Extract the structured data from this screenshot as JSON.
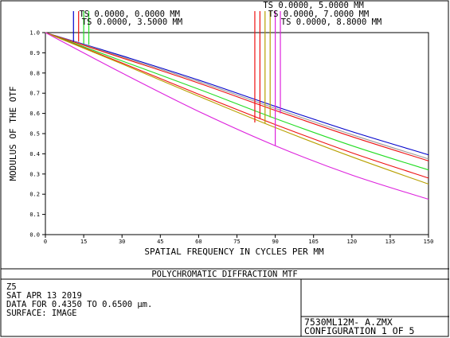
{
  "chart_data": {
    "type": "line",
    "title": "POLYCHROMATIC DIFFRACTION MTF",
    "xlabel": "SPATIAL FREQUENCY IN CYCLES PER MM",
    "ylabel": "MODULUS OF THE OTF",
    "xlim": [
      0,
      150
    ],
    "ylim": [
      0,
      1
    ],
    "x_ticks": [
      "0",
      "15",
      "30",
      "45",
      "60",
      "75",
      "90",
      "105",
      "120",
      "135",
      "150"
    ],
    "y_ticks": [
      "0.0",
      "0.1",
      "0.2",
      "0.3",
      "0.4",
      "0.5",
      "0.6",
      "0.7",
      "0.8",
      "0.9",
      "1.0"
    ],
    "grid": false,
    "field_labels": [
      {
        "text": "TS 0.0000, 0.0000 MM",
        "x_values": [
          11,
          13
        ]
      },
      {
        "text": "TS 0.0000, 3.5000 MM",
        "x_values": [
          15,
          17
        ]
      },
      {
        "text": "TS 0.0000, 5.0000 MM",
        "x_values": [
          82,
          84
        ]
      },
      {
        "text": "TS 0.0000, 7.0000 MM",
        "x_values": [
          86,
          88
        ]
      },
      {
        "text": "TS 0.0000, 8.8000 MM",
        "x_values": [
          90,
          92
        ]
      }
    ],
    "series": [
      {
        "color": "#0000cc",
        "x": [
          0,
          30,
          60,
          90,
          120,
          150
        ],
        "y": [
          1.0,
          0.885,
          0.765,
          0.635,
          0.51,
          0.395
        ]
      },
      {
        "color": "#9a9a9a",
        "x": [
          0,
          30,
          60,
          90,
          120,
          150
        ],
        "y": [
          1.0,
          0.88,
          0.758,
          0.625,
          0.495,
          0.375
        ]
      },
      {
        "color": "#ee1111",
        "x": [
          0,
          30,
          60,
          90,
          120,
          150
        ],
        "y": [
          1.0,
          0.875,
          0.75,
          0.615,
          0.485,
          0.365
        ]
      },
      {
        "color": "#22dd22",
        "x": [
          0,
          30,
          60,
          90,
          120,
          150
        ],
        "y": [
          1.0,
          0.86,
          0.72,
          0.575,
          0.44,
          0.32
        ]
      },
      {
        "color": "#ee1111",
        "x": [
          0,
          30,
          60,
          90,
          120,
          150
        ],
        "y": [
          1.0,
          0.85,
          0.695,
          0.545,
          0.405,
          0.28
        ]
      },
      {
        "color": "#b8a000",
        "x": [
          0,
          30,
          60,
          90,
          120,
          150
        ],
        "y": [
          1.0,
          0.845,
          0.685,
          0.53,
          0.385,
          0.25
        ]
      },
      {
        "color": "#dd22dd",
        "x": [
          0,
          30,
          60,
          90,
          120,
          150
        ],
        "y": [
          1.0,
          0.8,
          0.61,
          0.44,
          0.295,
          0.175
        ]
      }
    ],
    "markers": [
      {
        "color": "#0000cc",
        "x": 11,
        "y": 0.955
      },
      {
        "color": "#ee1111",
        "x": 13,
        "y": 0.955
      },
      {
        "color": "#22dd22",
        "x": 15,
        "y": 0.945
      },
      {
        "color": "#22dd22",
        "x": 17,
        "y": 0.94
      },
      {
        "color": "#ee1111",
        "x": 82,
        "y": 0.555
      },
      {
        "color": "#ee1111",
        "x": 84,
        "y": 0.575
      },
      {
        "color": "#b8a000",
        "x": 86,
        "y": 0.55
      },
      {
        "color": "#b8a000",
        "x": 88,
        "y": 0.58
      },
      {
        "color": "#dd22dd",
        "x": 90,
        "y": 0.44
      },
      {
        "color": "#dd22dd",
        "x": 92,
        "y": 0.6
      }
    ]
  },
  "footer": {
    "title": "POLYCHROMATIC DIFFRACTION MTF",
    "info_lines": [
      "Z5",
      "SAT APR 13 2019",
      "DATA FOR 0.4350 TO 0.6500 µm.",
      "SURFACE: IMAGE"
    ],
    "file_name": "7530ML12M- A.ZMX",
    "configuration": "CONFIGURATION 1 OF 5"
  },
  "colors": {
    "frame": "#000000",
    "background": "#ffffff"
  }
}
